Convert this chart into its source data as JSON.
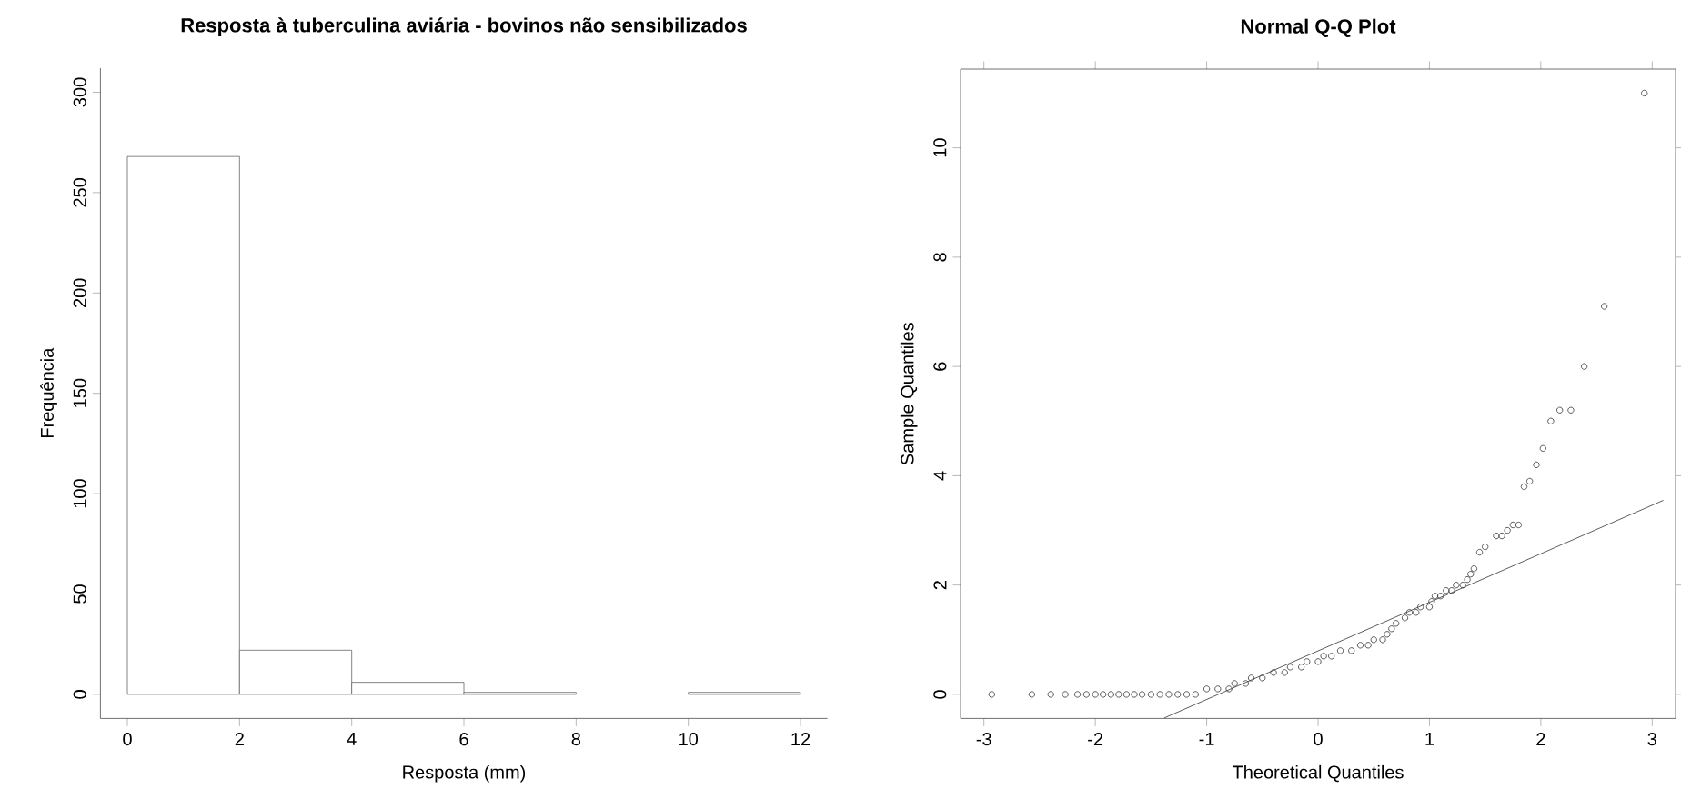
{
  "chart_data": [
    {
      "type": "histogram",
      "title": "Resposta à tuberculina aviária - bovinos não sensibilizados",
      "xlabel": "Resposta (mm)",
      "ylabel": "Frequência",
      "color": "#ffffff",
      "bins": [
        0,
        2,
        4,
        6,
        8,
        10,
        12
      ],
      "values": [
        268,
        22,
        6,
        1,
        0,
        1
      ],
      "xlim": [
        -0.48,
        12.48
      ],
      "ylim": [
        -12,
        312
      ],
      "xticks": [
        0,
        2,
        4,
        6,
        8,
        10,
        12
      ],
      "yticks": [
        0,
        50,
        100,
        150,
        200,
        250,
        300
      ]
    },
    {
      "type": "scatter",
      "title": "Normal Q-Q Plot",
      "xlabel": "Theoretical Quantiles",
      "ylabel": "Sample Quantiles",
      "xlim": [
        -3.21,
        3.21
      ],
      "ylim": [
        -0.44,
        11.44
      ],
      "xticks": [
        -3,
        -2,
        -1,
        0,
        1,
        2,
        3
      ],
      "yticks": [
        0,
        2,
        4,
        6,
        8,
        10
      ],
      "series": [
        {
          "type": "scatter",
          "marker": "circle",
          "color": "#333333",
          "x": [
            -2.93,
            -2.57,
            -2.4,
            -2.27,
            -2.16,
            -2.08,
            -2.0,
            -1.93,
            -1.86,
            -1.79,
            -1.72,
            -1.65,
            -1.58,
            -1.5,
            -1.42,
            -1.34,
            -1.26,
            -1.18,
            -1.1,
            -1.0,
            -0.9,
            -0.8,
            -0.75,
            -0.65,
            -0.6,
            -0.5,
            -0.4,
            -0.3,
            -0.25,
            -0.15,
            -0.1,
            0.0,
            0.05,
            0.12,
            0.2,
            0.3,
            0.38,
            0.45,
            0.5,
            0.58,
            0.62,
            0.66,
            0.7,
            0.78,
            0.82,
            0.88,
            0.92,
            1.0,
            1.02,
            1.05,
            1.1,
            1.15,
            1.2,
            1.24,
            1.3,
            1.34,
            1.37,
            1.4,
            1.45,
            1.5,
            1.6,
            1.65,
            1.7,
            1.75,
            1.8,
            1.85,
            1.9,
            1.96,
            2.02,
            2.09,
            2.17,
            2.27,
            2.39,
            2.57,
            2.93
          ],
          "values": [
            0,
            0,
            0,
            0,
            0,
            0,
            0,
            0,
            0,
            0,
            0,
            0,
            0,
            0,
            0,
            0,
            0,
            0,
            0,
            0.1,
            0.1,
            0.1,
            0.2,
            0.2,
            0.3,
            0.3,
            0.4,
            0.4,
            0.5,
            0.5,
            0.6,
            0.6,
            0.7,
            0.7,
            0.8,
            0.8,
            0.9,
            0.9,
            1.0,
            1.0,
            1.1,
            1.2,
            1.3,
            1.4,
            1.5,
            1.5,
            1.6,
            1.6,
            1.7,
            1.8,
            1.8,
            1.9,
            1.9,
            2.0,
            2.0,
            2.1,
            2.2,
            2.3,
            2.6,
            2.7,
            2.9,
            2.9,
            3.0,
            3.1,
            3.1,
            3.8,
            3.9,
            4.2,
            4.5,
            5.0,
            5.2,
            5.2,
            6.0,
            7.1,
            11.0
          ]
        },
        {
          "type": "line",
          "color": "#333333",
          "x": [
            -1.38,
            3.1
          ],
          "values": [
            -0.43,
            3.55
          ]
        }
      ]
    }
  ]
}
